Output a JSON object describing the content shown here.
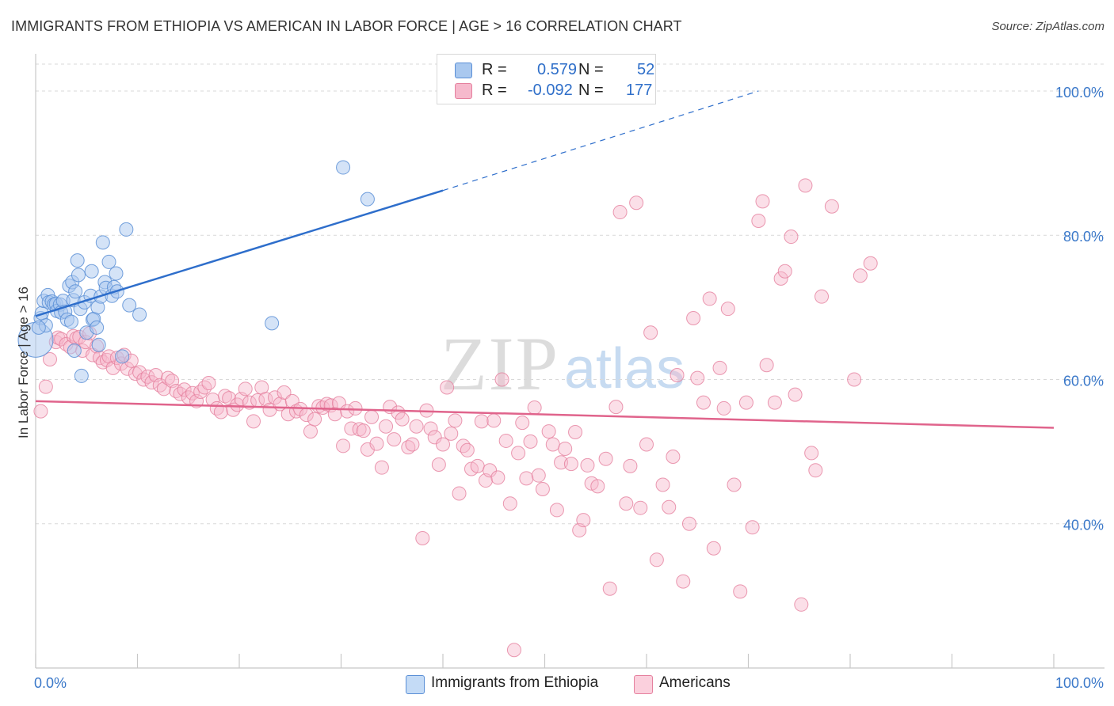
{
  "title": "IMMIGRANTS FROM ETHIOPIA VS AMERICAN IN LABOR FORCE | AGE > 16 CORRELATION CHART",
  "source": "Source: ZipAtlas.com",
  "watermark": {
    "zip": "ZIP",
    "atlas": "atlas"
  },
  "legend": {
    "rows": [
      {
        "r_label": "R =",
        "r_value": "0.579",
        "n_label": "N =",
        "n_value": "52",
        "color": "#a9c8ef",
        "border": "#5b8fd6"
      },
      {
        "r_label": "R =",
        "r_value": "-0.092",
        "n_label": "N =",
        "n_value": "177",
        "color": "#f6b9cc",
        "border": "#e5809e"
      }
    ]
  },
  "bottom_legend": [
    {
      "label": "Immigrants from Ethiopia",
      "color": "#c4dbf6",
      "border": "#5b8fd6"
    },
    {
      "label": "Americans",
      "color": "#fbd0dd",
      "border": "#e5809e"
    }
  ],
  "chart_data": {
    "type": "scatter",
    "title": "IMMIGRANTS FROM ETHIOPIA VS AMERICAN IN LABOR FORCE | AGE > 16 CORRELATION CHART",
    "xlabel": "",
    "ylabel": "In Labor Force | Age > 16",
    "xlim": [
      0,
      100
    ],
    "ylim": [
      20,
      104
    ],
    "x_tick_labels": [
      "0.0%",
      "100.0%"
    ],
    "y_ticks": [
      40,
      60,
      80,
      100
    ],
    "y_tick_labels": [
      "40.0%",
      "60.0%",
      "80.0%",
      "100.0%"
    ],
    "grid": true,
    "legend_position": "top-center",
    "series": [
      {
        "name": "Immigrants from Ethiopia",
        "color": "#5b8fd6",
        "fill": "#a9c8ef",
        "trend": {
          "x0": 0,
          "y0": 68.8,
          "x1": 40,
          "y1": 86.2,
          "dash_x1": 71,
          "dash_y1": 100
        },
        "points": [
          [
            0.0,
            65.5
          ],
          [
            0.5,
            68.5
          ],
          [
            0.6,
            69.2
          ],
          [
            0.8,
            70.9
          ],
          [
            1.0,
            67.5
          ],
          [
            1.2,
            71.7
          ],
          [
            1.3,
            70.7
          ],
          [
            1.6,
            70.8
          ],
          [
            1.8,
            70.4
          ],
          [
            2.0,
            70.5
          ],
          [
            2.1,
            69.5
          ],
          [
            2.4,
            70.4
          ],
          [
            2.5,
            69.3
          ],
          [
            2.7,
            70.9
          ],
          [
            2.9,
            69.4
          ],
          [
            3.1,
            68.3
          ],
          [
            3.3,
            73.0
          ],
          [
            3.5,
            68.0
          ],
          [
            3.6,
            73.5
          ],
          [
            3.7,
            71.0
          ],
          [
            3.8,
            64.0
          ],
          [
            3.9,
            72.2
          ],
          [
            4.1,
            76.5
          ],
          [
            4.2,
            74.5
          ],
          [
            4.4,
            69.8
          ],
          [
            4.5,
            60.5
          ],
          [
            4.8,
            70.7
          ],
          [
            5.0,
            66.5
          ],
          [
            5.4,
            71.6
          ],
          [
            5.5,
            75.0
          ],
          [
            5.6,
            68.3
          ],
          [
            5.7,
            68.4
          ],
          [
            6.0,
            67.2
          ],
          [
            6.1,
            70.0
          ],
          [
            6.2,
            64.8
          ],
          [
            6.4,
            71.5
          ],
          [
            6.6,
            79.0
          ],
          [
            6.8,
            73.5
          ],
          [
            6.9,
            72.7
          ],
          [
            7.2,
            76.3
          ],
          [
            7.5,
            71.6
          ],
          [
            7.7,
            72.8
          ],
          [
            7.9,
            74.7
          ],
          [
            8.0,
            72.2
          ],
          [
            8.5,
            63.2
          ],
          [
            8.9,
            80.8
          ],
          [
            9.2,
            70.3
          ],
          [
            10.2,
            69.0
          ],
          [
            23.2,
            67.8
          ],
          [
            30.2,
            89.4
          ],
          [
            32.6,
            85.0
          ],
          [
            0.3,
            67.2
          ]
        ]
      },
      {
        "name": "Americans",
        "color": "#e5809e",
        "fill": "#f6b9cc",
        "trend": {
          "x0": 0,
          "y0": 57.0,
          "x1": 100,
          "y1": 53.3
        },
        "points": [
          [
            0.5,
            55.6
          ],
          [
            1.0,
            59.0
          ],
          [
            1.4,
            62.8
          ],
          [
            2.0,
            65.2
          ],
          [
            2.2,
            65.8
          ],
          [
            2.5,
            65.6
          ],
          [
            3.0,
            64.9
          ],
          [
            3.4,
            64.5
          ],
          [
            3.7,
            66.0
          ],
          [
            4.0,
            65.7
          ],
          [
            4.3,
            65.9
          ],
          [
            4.6,
            64.0
          ],
          [
            4.9,
            65.2
          ],
          [
            5.3,
            66.4
          ],
          [
            5.6,
            63.4
          ],
          [
            6.0,
            64.6
          ],
          [
            6.3,
            63.0
          ],
          [
            6.6,
            62.4
          ],
          [
            7.0,
            62.7
          ],
          [
            7.2,
            63.2
          ],
          [
            7.6,
            61.6
          ],
          [
            8.0,
            63.0
          ],
          [
            8.4,
            62.2
          ],
          [
            8.7,
            63.4
          ],
          [
            9.0,
            61.5
          ],
          [
            9.4,
            62.6
          ],
          [
            9.8,
            60.8
          ],
          [
            10.2,
            61.0
          ],
          [
            10.6,
            60.0
          ],
          [
            11.0,
            60.4
          ],
          [
            11.4,
            59.6
          ],
          [
            11.8,
            60.6
          ],
          [
            12.2,
            59.2
          ],
          [
            12.6,
            58.7
          ],
          [
            13.0,
            60.2
          ],
          [
            13.4,
            59.8
          ],
          [
            13.8,
            58.4
          ],
          [
            14.2,
            58.0
          ],
          [
            14.6,
            58.6
          ],
          [
            15.0,
            57.5
          ],
          [
            15.4,
            58.1
          ],
          [
            15.8,
            57.0
          ],
          [
            16.2,
            58.3
          ],
          [
            16.6,
            58.9
          ],
          [
            17.0,
            59.5
          ],
          [
            17.4,
            57.2
          ],
          [
            17.8,
            56.0
          ],
          [
            18.2,
            55.5
          ],
          [
            18.6,
            57.7
          ],
          [
            19.0,
            57.4
          ],
          [
            19.4,
            55.8
          ],
          [
            19.8,
            56.5
          ],
          [
            20.2,
            57.3
          ],
          [
            20.6,
            58.7
          ],
          [
            21.0,
            56.8
          ],
          [
            21.4,
            54.2
          ],
          [
            21.8,
            57.1
          ],
          [
            22.2,
            58.9
          ],
          [
            22.6,
            57.3
          ],
          [
            23.0,
            55.8
          ],
          [
            23.5,
            57.5
          ],
          [
            24.0,
            56.6
          ],
          [
            24.4,
            58.2
          ],
          [
            24.8,
            55.2
          ],
          [
            25.2,
            57.0
          ],
          [
            25.6,
            55.6
          ],
          [
            26.0,
            55.9
          ],
          [
            26.6,
            55.1
          ],
          [
            27.0,
            52.8
          ],
          [
            27.4,
            54.5
          ],
          [
            27.8,
            56.3
          ],
          [
            28.2,
            56.1
          ],
          [
            28.6,
            56.6
          ],
          [
            29.0,
            56.4
          ],
          [
            29.4,
            55.2
          ],
          [
            29.8,
            56.7
          ],
          [
            30.2,
            50.8
          ],
          [
            30.6,
            55.6
          ],
          [
            31.0,
            53.2
          ],
          [
            31.4,
            56.0
          ],
          [
            31.8,
            53.1
          ],
          [
            32.2,
            52.9
          ],
          [
            32.6,
            50.3
          ],
          [
            33.0,
            54.8
          ],
          [
            33.5,
            51.1
          ],
          [
            34.0,
            47.8
          ],
          [
            34.4,
            53.5
          ],
          [
            34.8,
            56.2
          ],
          [
            35.2,
            51.7
          ],
          [
            35.6,
            55.4
          ],
          [
            36.0,
            54.5
          ],
          [
            36.6,
            50.6
          ],
          [
            37.0,
            51.0
          ],
          [
            37.4,
            53.5
          ],
          [
            38.0,
            38.0
          ],
          [
            38.4,
            55.7
          ],
          [
            38.8,
            53.2
          ],
          [
            39.2,
            52.0
          ],
          [
            39.6,
            48.2
          ],
          [
            40.0,
            51.0
          ],
          [
            40.4,
            58.9
          ],
          [
            40.8,
            52.5
          ],
          [
            41.2,
            54.3
          ],
          [
            41.6,
            44.2
          ],
          [
            42.0,
            50.8
          ],
          [
            42.4,
            50.2
          ],
          [
            42.8,
            47.6
          ],
          [
            43.4,
            48.0
          ],
          [
            43.8,
            54.2
          ],
          [
            44.2,
            46.0
          ],
          [
            44.6,
            47.4
          ],
          [
            45.0,
            54.3
          ],
          [
            45.4,
            46.4
          ],
          [
            45.8,
            60.0
          ],
          [
            46.2,
            51.5
          ],
          [
            46.6,
            42.8
          ],
          [
            47.0,
            22.5
          ],
          [
            47.4,
            49.8
          ],
          [
            47.8,
            54.0
          ],
          [
            48.2,
            46.3
          ],
          [
            48.6,
            51.4
          ],
          [
            49.0,
            56.1
          ],
          [
            49.4,
            46.7
          ],
          [
            49.8,
            44.8
          ],
          [
            50.4,
            52.8
          ],
          [
            50.8,
            51.0
          ],
          [
            51.2,
            41.9
          ],
          [
            51.6,
            48.5
          ],
          [
            52.0,
            50.4
          ],
          [
            52.6,
            48.3
          ],
          [
            53.0,
            52.7
          ],
          [
            53.4,
            39.1
          ],
          [
            53.8,
            40.5
          ],
          [
            54.2,
            48.1
          ],
          [
            54.6,
            45.6
          ],
          [
            55.2,
            45.2
          ],
          [
            56.0,
            49.0
          ],
          [
            56.4,
            31.0
          ],
          [
            57.0,
            56.2
          ],
          [
            57.4,
            83.2
          ],
          [
            58.0,
            42.8
          ],
          [
            58.4,
            48.0
          ],
          [
            59.0,
            84.5
          ],
          [
            59.4,
            42.2
          ],
          [
            60.0,
            51.0
          ],
          [
            60.4,
            66.5
          ],
          [
            61.0,
            35.0
          ],
          [
            61.6,
            45.4
          ],
          [
            62.2,
            42.3
          ],
          [
            62.6,
            49.3
          ],
          [
            63.0,
            60.6
          ],
          [
            63.6,
            32.0
          ],
          [
            64.2,
            40.0
          ],
          [
            64.6,
            68.5
          ],
          [
            65.0,
            60.2
          ],
          [
            65.6,
            56.8
          ],
          [
            66.2,
            71.2
          ],
          [
            66.6,
            36.6
          ],
          [
            67.2,
            61.6
          ],
          [
            67.6,
            56.0
          ],
          [
            68.0,
            69.8
          ],
          [
            68.6,
            45.4
          ],
          [
            69.2,
            30.6
          ],
          [
            69.8,
            56.8
          ],
          [
            70.4,
            39.5
          ],
          [
            71.0,
            82.0
          ],
          [
            71.4,
            84.7
          ],
          [
            71.8,
            62.0
          ],
          [
            72.6,
            56.8
          ],
          [
            73.2,
            74.0
          ],
          [
            73.6,
            75.0
          ],
          [
            74.2,
            79.8
          ],
          [
            74.6,
            57.9
          ],
          [
            75.2,
            28.8
          ],
          [
            75.6,
            86.9
          ],
          [
            76.2,
            49.8
          ],
          [
            76.6,
            47.4
          ],
          [
            77.2,
            71.5
          ],
          [
            78.2,
            84.0
          ],
          [
            80.4,
            60.0
          ],
          [
            81.0,
            74.4
          ],
          [
            82.0,
            76.1
          ]
        ]
      }
    ]
  }
}
